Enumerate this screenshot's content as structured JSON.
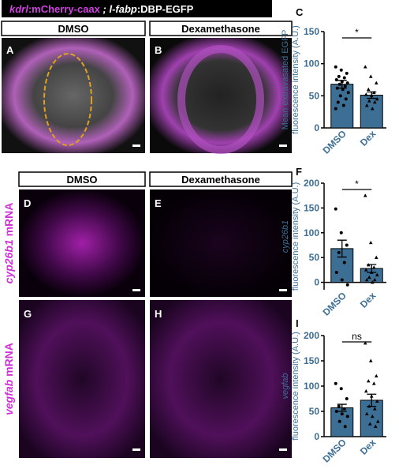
{
  "header": {
    "parts": [
      "kdrl",
      ":mCherry-caax",
      " ; ",
      "l-fabp",
      ":DBP-EGFP"
    ]
  },
  "panels": {
    "labels": [
      "A",
      "B",
      "C",
      "D",
      "E",
      "F",
      "G",
      "H",
      "I"
    ],
    "columns": [
      [
        "DMSO",
        "Dexamethasone"
      ],
      [
        "DMSO",
        "Dexamethasone"
      ]
    ],
    "rows": [
      [
        "cyp26b1",
        " mRNA"
      ],
      [
        "vegfab",
        " mRNA"
      ]
    ]
  },
  "chart_data": [
    {
      "type": "bar",
      "ylabel": [
        "Mean extravasated EGFP",
        "fluorescence intensity (A.U.)"
      ],
      "ylabel_italic": [
        false,
        false
      ],
      "categories": [
        "DMSO",
        "Dex"
      ],
      "values": [
        68,
        51
      ],
      "errors": [
        6,
        5
      ],
      "points": [
        [
          95,
          90,
          85,
          80,
          78,
          75,
          72,
          70,
          68,
          65,
          62,
          60,
          55,
          50,
          45,
          40,
          35,
          30
        ],
        [
          95,
          80,
          70,
          60,
          55,
          52,
          50,
          45,
          42,
          40,
          35,
          30
        ]
      ],
      "ylim": [
        0,
        150
      ],
      "yticks": [
        0,
        50,
        100,
        150
      ],
      "significance": "*",
      "color": "#3d6e94"
    },
    {
      "type": "bar",
      "ylabel": [
        "cyp26b1",
        "fluorescence intensity (A.U.)"
      ],
      "ylabel_italic": [
        true,
        false
      ],
      "categories": [
        "DMSO",
        "Dex"
      ],
      "values": [
        68,
        28
      ],
      "errors": [
        17,
        8
      ],
      "points": [
        [
          148,
          100,
          75,
          60,
          40,
          20,
          5,
          -5
        ],
        [
          175,
          80,
          50,
          35,
          30,
          25,
          20,
          15,
          10,
          5,
          5,
          0
        ]
      ],
      "ylim": [
        -15,
        200
      ],
      "yticks": [
        0,
        50,
        100,
        150,
        200
      ],
      "significance": "*",
      "color": "#3d6e94"
    },
    {
      "type": "bar",
      "ylabel": [
        "vegfab",
        "fluorescence intensity (A.U.)"
      ],
      "ylabel_italic": [
        true,
        false
      ],
      "categories": [
        "DMSO",
        "Dex"
      ],
      "values": [
        57,
        72
      ],
      "errors": [
        7,
        12
      ],
      "points": [
        [
          105,
          95,
          75,
          60,
          55,
          50,
          45,
          40,
          30,
          20
        ],
        [
          185,
          150,
          120,
          110,
          105,
          90,
          80,
          70,
          60,
          55,
          45,
          40,
          30,
          25,
          20
        ]
      ],
      "ylim": [
        0,
        200
      ],
      "yticks": [
        0,
        50,
        100,
        150,
        200
      ],
      "significance": "ns",
      "color": "#3d6e94"
    }
  ]
}
